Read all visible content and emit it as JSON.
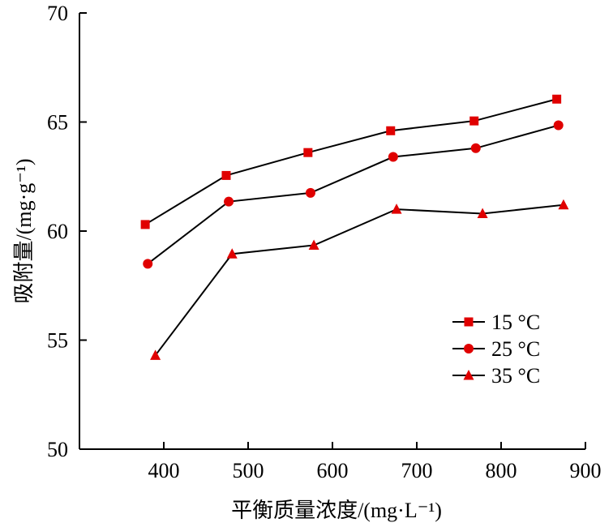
{
  "chart_data": {
    "type": "line",
    "xlabel": "平衡质量浓度/(mg·L⁻¹)",
    "ylabel": "吸附量/(mg·g⁻¹)",
    "xlim": [
      300,
      900
    ],
    "ylim": [
      50,
      70
    ],
    "xticks": [
      400,
      500,
      600,
      700,
      800,
      900
    ],
    "yticks": [
      50,
      55,
      60,
      65,
      70
    ],
    "grid": false,
    "legend_position": "lower-right",
    "series": [
      {
        "name": "15 °C",
        "marker": "square",
        "color": "#e00000",
        "points": [
          [
            378,
            60.3
          ],
          [
            474,
            62.55
          ],
          [
            571,
            63.6
          ],
          [
            669,
            64.6
          ],
          [
            768,
            65.05
          ],
          [
            866,
            66.05
          ]
        ]
      },
      {
        "name": "25 °C",
        "marker": "circle",
        "color": "#e00000",
        "points": [
          [
            381,
            58.5
          ],
          [
            477,
            61.35
          ],
          [
            574,
            61.75
          ],
          [
            672,
            63.4
          ],
          [
            770,
            63.8
          ],
          [
            868,
            64.85
          ]
        ]
      },
      {
        "name": "35 °C",
        "marker": "triangle",
        "color": "#e00000",
        "points": [
          [
            390,
            54.3
          ],
          [
            481,
            58.95
          ],
          [
            578,
            59.35
          ],
          [
            676,
            61.0
          ],
          [
            778,
            60.8
          ],
          [
            874,
            61.2
          ]
        ]
      }
    ]
  }
}
